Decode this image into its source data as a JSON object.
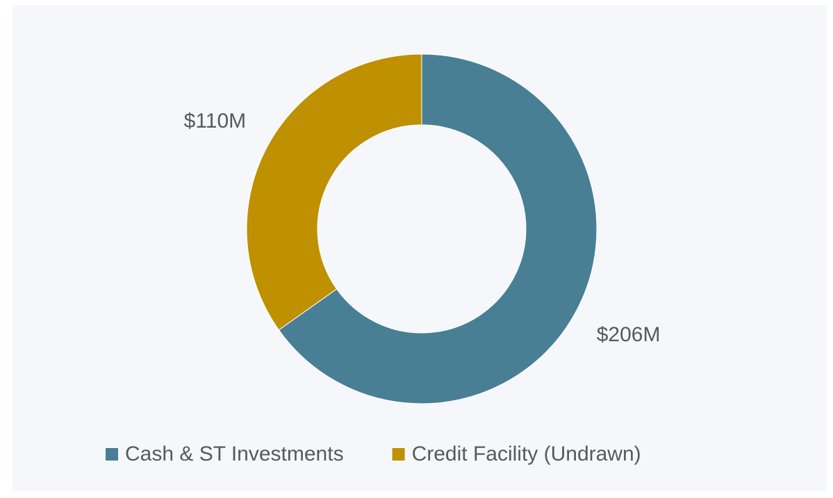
{
  "chart_data": {
    "type": "pie",
    "donut": true,
    "categories": [
      "Cash & ST Investments",
      "Credit Facility (Undrawn)"
    ],
    "values": [
      206,
      110
    ],
    "value_labels": [
      "$206M",
      "$110M"
    ],
    "colors": [
      "#487f95",
      "#bf9000"
    ],
    "legend": "bottom"
  }
}
